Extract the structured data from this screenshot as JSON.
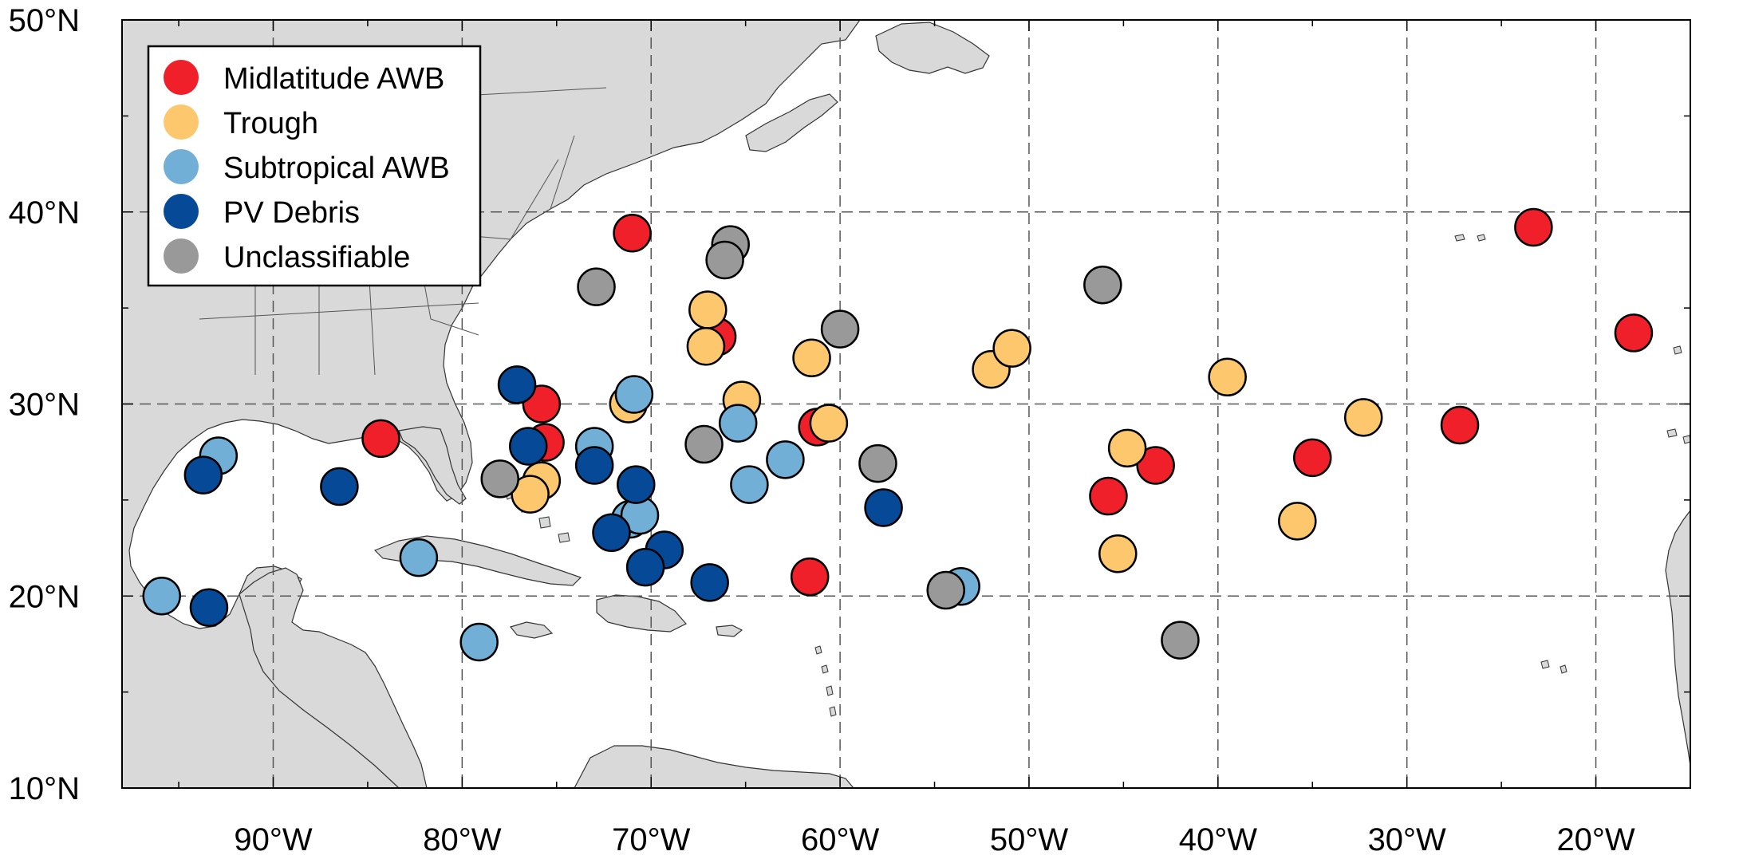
{
  "map": {
    "lat_range": [
      10,
      50
    ],
    "lon_range": [
      -98,
      -15
    ],
    "lat_ticks": [
      {
        "value": 50,
        "label": "50°N"
      },
      {
        "value": 40,
        "label": "40°N"
      },
      {
        "value": 30,
        "label": "30°N"
      },
      {
        "value": 20,
        "label": "20°N"
      },
      {
        "value": 10,
        "label": "10°N"
      }
    ],
    "lon_ticks": [
      {
        "value": -90,
        "label": "90°W"
      },
      {
        "value": -80,
        "label": "80°W"
      },
      {
        "value": -70,
        "label": "70°W"
      },
      {
        "value": -60,
        "label": "60°W"
      },
      {
        "value": -50,
        "label": "50°W"
      },
      {
        "value": -40,
        "label": "40°W"
      },
      {
        "value": -30,
        "label": "30°W"
      },
      {
        "value": -20,
        "label": "20°W"
      }
    ],
    "gridlines": "dashed",
    "land_color": "#d9d9d9",
    "ocean_color": "#ffffff",
    "legend_position": "top-left"
  },
  "legend": [
    {
      "key": "midlatitude_awb",
      "label": "Midlatitude AWB",
      "color": "#f0202a"
    },
    {
      "key": "trough",
      "label": "Trough",
      "color": "#fdc86d"
    },
    {
      "key": "subtropical_awb",
      "label": "Subtropical AWB",
      "color": "#72afd6"
    },
    {
      "key": "pv_debris",
      "label": "PV Debris",
      "color": "#064a97"
    },
    {
      "key": "unclassifiable",
      "label": "Unclassifiable",
      "color": "#999999"
    }
  ],
  "chart_data": {
    "type": "scatter",
    "x_axis": "longitude",
    "y_axis": "latitude",
    "xlim": [
      -98,
      -15
    ],
    "ylim": [
      10,
      50
    ],
    "series": [
      {
        "name": "Midlatitude AWB",
        "color": "#f0202a",
        "points": [
          {
            "lon": -71.0,
            "lat": 38.9
          },
          {
            "lon": -66.5,
            "lat": 33.5
          },
          {
            "lon": -75.8,
            "lat": 30.0
          },
          {
            "lon": -75.6,
            "lat": 28.0
          },
          {
            "lon": -84.3,
            "lat": 28.2
          },
          {
            "lon": -61.2,
            "lat": 28.8
          },
          {
            "lon": -61.6,
            "lat": 21.0
          },
          {
            "lon": -45.8,
            "lat": 25.2
          },
          {
            "lon": -43.3,
            "lat": 26.8
          },
          {
            "lon": -35.0,
            "lat": 27.2
          },
          {
            "lon": -27.2,
            "lat": 28.9
          },
          {
            "lon": -23.3,
            "lat": 39.2
          },
          {
            "lon": -18.0,
            "lat": 33.7
          }
        ]
      },
      {
        "name": "Trough",
        "color": "#fdc86d",
        "points": [
          {
            "lon": -67.0,
            "lat": 34.9
          },
          {
            "lon": -67.1,
            "lat": 33.0
          },
          {
            "lon": -65.2,
            "lat": 30.2
          },
          {
            "lon": -71.2,
            "lat": 30.0
          },
          {
            "lon": -61.5,
            "lat": 32.4
          },
          {
            "lon": -60.6,
            "lat": 29.0
          },
          {
            "lon": -75.8,
            "lat": 26.0
          },
          {
            "lon": -76.4,
            "lat": 25.3
          },
          {
            "lon": -52.0,
            "lat": 31.8
          },
          {
            "lon": -50.9,
            "lat": 32.9
          },
          {
            "lon": -39.5,
            "lat": 31.4
          },
          {
            "lon": -32.3,
            "lat": 29.3
          },
          {
            "lon": -44.8,
            "lat": 27.7
          },
          {
            "lon": -35.8,
            "lat": 23.9
          },
          {
            "lon": -45.3,
            "lat": 22.2
          }
        ]
      },
      {
        "name": "Subtropical AWB",
        "color": "#72afd6",
        "points": [
          {
            "lon": -70.9,
            "lat": 30.5
          },
          {
            "lon": -65.4,
            "lat": 29.0
          },
          {
            "lon": -73.0,
            "lat": 27.8
          },
          {
            "lon": -62.9,
            "lat": 27.1
          },
          {
            "lon": -64.8,
            "lat": 25.8
          },
          {
            "lon": -71.1,
            "lat": 24.0
          },
          {
            "lon": -70.6,
            "lat": 24.2
          },
          {
            "lon": -92.9,
            "lat": 27.3
          },
          {
            "lon": -82.3,
            "lat": 22.0
          },
          {
            "lon": -95.9,
            "lat": 20.0
          },
          {
            "lon": -79.1,
            "lat": 17.6
          },
          {
            "lon": -53.6,
            "lat": 20.5
          }
        ]
      },
      {
        "name": "PV Debris",
        "color": "#064a97",
        "points": [
          {
            "lon": -77.1,
            "lat": 31.0
          },
          {
            "lon": -76.5,
            "lat": 27.8
          },
          {
            "lon": -73.0,
            "lat": 26.8
          },
          {
            "lon": -70.8,
            "lat": 25.8
          },
          {
            "lon": -72.1,
            "lat": 23.3
          },
          {
            "lon": -69.3,
            "lat": 22.4
          },
          {
            "lon": -70.3,
            "lat": 21.5
          },
          {
            "lon": -66.9,
            "lat": 20.7
          },
          {
            "lon": -57.7,
            "lat": 24.6
          },
          {
            "lon": -93.7,
            "lat": 26.3
          },
          {
            "lon": -86.5,
            "lat": 25.7
          },
          {
            "lon": -93.4,
            "lat": 19.4
          }
        ]
      },
      {
        "name": "Unclassifiable",
        "color": "#999999",
        "points": [
          {
            "lon": -65.8,
            "lat": 38.3
          },
          {
            "lon": -66.1,
            "lat": 37.5
          },
          {
            "lon": -72.9,
            "lat": 36.1
          },
          {
            "lon": -60.0,
            "lat": 33.9
          },
          {
            "lon": -67.2,
            "lat": 27.9
          },
          {
            "lon": -58.0,
            "lat": 26.9
          },
          {
            "lon": -78.0,
            "lat": 26.1
          },
          {
            "lon": -46.1,
            "lat": 36.2
          },
          {
            "lon": -54.4,
            "lat": 20.3
          },
          {
            "lon": -42.0,
            "lat": 17.7
          }
        ]
      }
    ]
  }
}
